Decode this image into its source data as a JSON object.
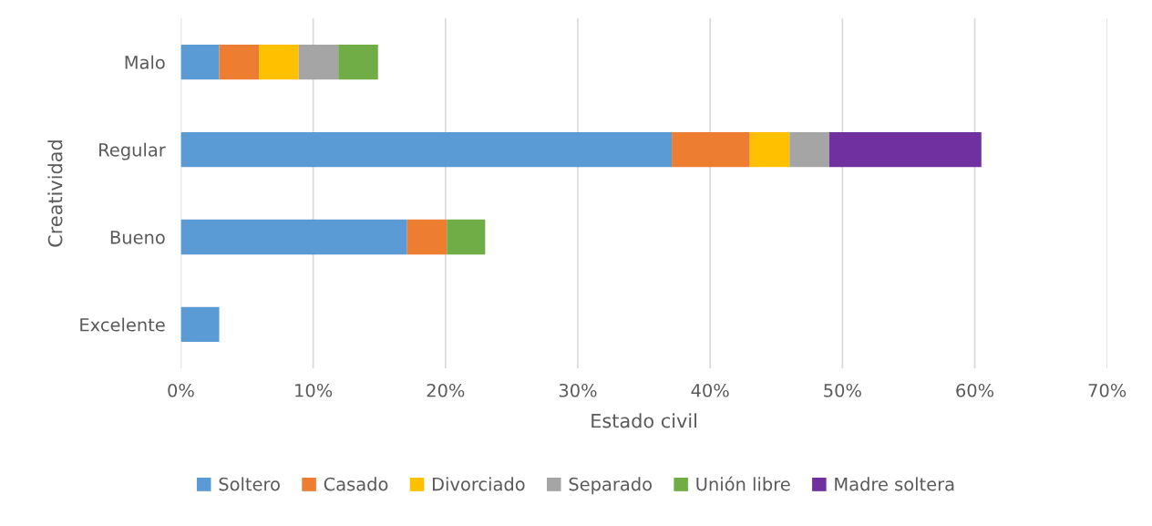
{
  "chart_data": {
    "type": "bar",
    "orientation": "horizontal",
    "stacked": true,
    "categories": [
      "Malo",
      "Regular",
      "Bueno",
      "Excelente"
    ],
    "xlabel": "Estado civil",
    "ylabel": "Creatividad",
    "xlim": [
      0,
      70
    ],
    "xticks": [
      {
        "value": 0,
        "label": "0%"
      },
      {
        "value": 10,
        "label": "10%"
      },
      {
        "value": 20,
        "label": "20%"
      },
      {
        "value": 30,
        "label": "30%"
      },
      {
        "value": 40,
        "label": "40%"
      },
      {
        "value": 50,
        "label": "50%"
      },
      {
        "value": 60,
        "label": "60%"
      },
      {
        "value": 70,
        "label": "70%"
      }
    ],
    "grid": "x",
    "legend": "bottom",
    "series": [
      {
        "name": "Soltero",
        "color": "#5b9bd5",
        "values": [
          2.9,
          37.1,
          17.1,
          2.9
        ]
      },
      {
        "name": "Casado",
        "color": "#ed7d31",
        "values": [
          3.0,
          5.9,
          3.0,
          0
        ]
      },
      {
        "name": "Divorciado",
        "color": "#ffc000",
        "values": [
          3.0,
          3.0,
          0,
          0
        ]
      },
      {
        "name": "Separado",
        "color": "#a5a5a5",
        "values": [
          3.0,
          3.0,
          0,
          0
        ]
      },
      {
        "name": "Unión libre",
        "color": "#70ad47",
        "values": [
          3.0,
          0,
          2.9,
          0
        ]
      },
      {
        "name": "Madre soltera",
        "color": "#7030a0",
        "values": [
          0,
          11.5,
          0,
          0
        ]
      }
    ]
  }
}
